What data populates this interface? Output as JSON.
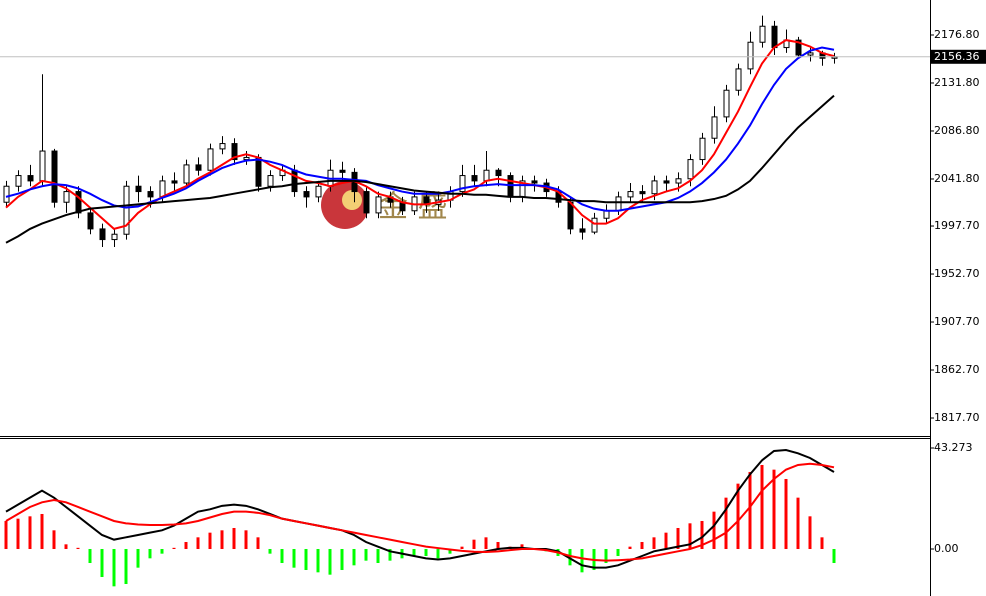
{
  "watermark": "金 盛",
  "chart_data": [
    {
      "type": "candlestick",
      "open": [
        2020,
        2035,
        2045,
        2040,
        2068,
        2020,
        2030,
        2010,
        1995,
        1985,
        1990,
        2035,
        2030,
        2025,
        2040,
        2038,
        2055,
        2050,
        2070,
        2075,
        2060,
        2062,
        2035,
        2045,
        2050,
        2030,
        2025,
        2035,
        2050,
        2048,
        2030,
        2010,
        2025,
        2020,
        2012,
        2025,
        2018,
        2022,
        2030,
        2045,
        2040,
        2050,
        2045,
        2025,
        2040,
        2038,
        2030,
        2020,
        1995,
        1992,
        2005,
        2012,
        2025,
        2030,
        2028,
        2040,
        2038,
        2042,
        2060,
        2080,
        2100,
        2125,
        2145,
        2170,
        2185,
        2165,
        2172,
        2158,
        2160,
        2155
      ],
      "high": [
        2040,
        2050,
        2055,
        2140,
        2070,
        2035,
        2035,
        2015,
        2000,
        1995,
        2040,
        2045,
        2035,
        2045,
        2048,
        2060,
        2062,
        2075,
        2082,
        2080,
        2068,
        2065,
        2050,
        2055,
        2055,
        2035,
        2040,
        2060,
        2058,
        2052,
        2035,
        2030,
        2030,
        2025,
        2030,
        2030,
        2028,
        2035,
        2055,
        2055,
        2068,
        2052,
        2048,
        2045,
        2045,
        2042,
        2035,
        2025,
        2005,
        2010,
        2018,
        2030,
        2038,
        2036,
        2045,
        2045,
        2048,
        2065,
        2085,
        2110,
        2130,
        2150,
        2180,
        2195,
        2190,
        2182,
        2175,
        2165,
        2162,
        2160
      ],
      "low": [
        2015,
        2030,
        2035,
        2035,
        2015,
        2010,
        2005,
        1990,
        1978,
        1978,
        1985,
        2020,
        2015,
        2020,
        2030,
        2035,
        2045,
        2045,
        2065,
        2055,
        2055,
        2030,
        2030,
        2040,
        2025,
        2015,
        2020,
        2030,
        2040,
        2020,
        2005,
        2005,
        2015,
        2008,
        2008,
        2010,
        2012,
        2015,
        2025,
        2035,
        2035,
        2035,
        2020,
        2020,
        2030,
        2025,
        2015,
        1990,
        1985,
        1990,
        2000,
        2008,
        2020,
        2020,
        2022,
        2030,
        2030,
        2035,
        2055,
        2075,
        2095,
        2120,
        2140,
        2165,
        2158,
        2160,
        2155,
        2152,
        2148,
        2150
      ],
      "close": [
        2035,
        2045,
        2040,
        2068,
        2020,
        2030,
        2010,
        1995,
        1985,
        1990,
        2035,
        2030,
        2025,
        2040,
        2038,
        2055,
        2050,
        2070,
        2075,
        2060,
        2062,
        2035,
        2045,
        2050,
        2030,
        2025,
        2035,
        2050,
        2048,
        2030,
        2010,
        2025,
        2020,
        2012,
        2025,
        2018,
        2022,
        2030,
        2045,
        2040,
        2050,
        2045,
        2025,
        2040,
        2038,
        2030,
        2020,
        1995,
        1992,
        2005,
        2012,
        2025,
        2030,
        2028,
        2040,
        2038,
        2042,
        2060,
        2080,
        2100,
        2125,
        2145,
        2170,
        2185,
        2165,
        2172,
        2158,
        2160,
        2155,
        2156.36
      ],
      "lines": [
        {
          "color": "#ff0000",
          "values": [
            2015,
            2025,
            2032,
            2040,
            2038,
            2033,
            2025,
            2015,
            2005,
            1995,
            1998,
            2010,
            2018,
            2025,
            2030,
            2035,
            2042,
            2048,
            2055,
            2062,
            2065,
            2062,
            2055,
            2050,
            2045,
            2040,
            2038,
            2035,
            2038,
            2040,
            2035,
            2028,
            2025,
            2020,
            2018,
            2018,
            2020,
            2022,
            2028,
            2032,
            2040,
            2042,
            2040,
            2038,
            2036,
            2034,
            2030,
            2020,
            2008,
            2000,
            2000,
            2005,
            2015,
            2022,
            2026,
            2030,
            2033,
            2040,
            2050,
            2065,
            2085,
            2105,
            2128,
            2150,
            2165,
            2172,
            2170,
            2166,
            2160,
            2157
          ]
        },
        {
          "color": "#0000ff",
          "values": [
            2025,
            2028,
            2032,
            2035,
            2037,
            2036,
            2033,
            2028,
            2022,
            2017,
            2015,
            2016,
            2020,
            2024,
            2028,
            2033,
            2040,
            2046,
            2052,
            2056,
            2059,
            2060,
            2058,
            2055,
            2050,
            2046,
            2044,
            2042,
            2042,
            2041,
            2040,
            2036,
            2033,
            2030,
            2028,
            2028,
            2028,
            2030,
            2033,
            2035,
            2036,
            2037,
            2036,
            2036,
            2036,
            2035,
            2032,
            2025,
            2018,
            2014,
            2012,
            2012,
            2014,
            2016,
            2018,
            2020,
            2024,
            2030,
            2038,
            2048,
            2060,
            2075,
            2092,
            2112,
            2130,
            2145,
            2155,
            2162,
            2165,
            2163
          ]
        },
        {
          "color": "#000000",
          "values": [
            1982,
            1988,
            1995,
            2000,
            2004,
            2008,
            2011,
            2014,
            2015,
            2016,
            2017,
            2018,
            2019,
            2020,
            2021,
            2022,
            2023,
            2024,
            2026,
            2028,
            2030,
            2032,
            2034,
            2035,
            2037,
            2038,
            2039,
            2040,
            2040,
            2040,
            2039,
            2037,
            2035,
            2033,
            2031,
            2030,
            2029,
            2028,
            2028,
            2027,
            2027,
            2026,
            2025,
            2025,
            2024,
            2024,
            2023,
            2022,
            2021,
            2021,
            2020,
            2020,
            2020,
            2020,
            2020,
            2020,
            2020,
            2020,
            2021,
            2023,
            2026,
            2032,
            2040,
            2052,
            2065,
            2078,
            2090,
            2100,
            2110,
            2120
          ]
        }
      ],
      "ylim": [
        1799.9,
        2209.6
      ],
      "yticks": [
        {
          "value": 2176.8,
          "label": "2176.80"
        },
        {
          "value": 2131.8,
          "label": "2131.80"
        },
        {
          "value": 2086.8,
          "label": "2086.80"
        },
        {
          "value": 2041.8,
          "label": "2041.80"
        },
        {
          "value": 1997.7,
          "label": "1997.70"
        },
        {
          "value": 1952.7,
          "label": "1952.70"
        },
        {
          "value": 1907.7,
          "label": "1907.70"
        },
        {
          "value": 1862.7,
          "label": "1862.70"
        },
        {
          "value": 1817.7,
          "label": "1817.70"
        }
      ],
      "last_price": {
        "value": 2156.36,
        "label": "2156.36"
      }
    },
    {
      "type": "macd",
      "histogram": {
        "up_color": "#ff0000",
        "down_color": "#00ff00",
        "values": [
          12,
          13,
          14,
          15,
          8,
          2,
          0.5,
          -6,
          -12,
          -16,
          -15,
          -8,
          -4,
          -2,
          0.5,
          3,
          5,
          7,
          8,
          9,
          8,
          5,
          -2,
          -6,
          -8,
          -9,
          -10,
          -11,
          -9,
          -7,
          -5,
          -6,
          -5,
          -4,
          -3,
          -3,
          -4,
          -2,
          1,
          4,
          5,
          3,
          1,
          2,
          0,
          -1,
          -3,
          -7,
          -10,
          -9,
          -6,
          -3,
          1,
          3,
          5,
          7,
          9,
          11,
          12,
          16,
          22,
          28,
          33,
          36,
          34,
          30,
          22,
          14,
          5,
          -6
        ]
      },
      "lines": [
        {
          "color": "#000000",
          "values": [
            16,
            19,
            22,
            25,
            22,
            18,
            14,
            10,
            6,
            4,
            5,
            6,
            7,
            8,
            10,
            13,
            16,
            17,
            18.5,
            19,
            18.5,
            17,
            15,
            13,
            12,
            11,
            10,
            9,
            8,
            6,
            3,
            1,
            -1,
            -2,
            -3,
            -4,
            -4.5,
            -4,
            -3,
            -2,
            -1,
            0,
            0.5,
            0.5,
            0,
            0,
            -1,
            -4,
            -7,
            -8,
            -8,
            -7,
            -5,
            -3,
            -1,
            0,
            1,
            2,
            5,
            10,
            17,
            25,
            32,
            38,
            42,
            42.4,
            41,
            39,
            36,
            33
          ]
        },
        {
          "color": "#ff0000",
          "values": [
            12,
            15,
            18,
            20,
            21,
            20,
            18,
            16,
            14,
            12,
            11,
            10.5,
            10.3,
            10.3,
            10.5,
            11,
            12,
            13.5,
            15,
            16,
            16,
            15.5,
            14.5,
            13,
            12,
            11,
            10,
            9,
            8,
            7,
            6,
            5,
            4,
            3,
            2,
            1,
            0.4,
            -0.2,
            -0.8,
            -1.2,
            -1.3,
            -1,
            -0.5,
            0,
            0,
            -0.5,
            -1.5,
            -3,
            -4,
            -4.7,
            -5,
            -4.8,
            -4.5,
            -4,
            -3,
            -2,
            -1,
            0,
            1.7,
            4,
            7,
            12,
            18,
            25,
            30,
            34,
            36,
            36.5,
            36,
            35
          ]
        }
      ],
      "ylim": [
        -20.14,
        47.56
      ],
      "yticks": [
        43.273,
        {
          "value": 0,
          "label": "0.00"
        }
      ]
    }
  ]
}
